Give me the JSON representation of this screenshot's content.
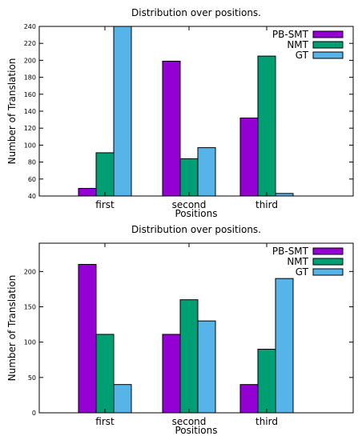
{
  "chart_data": [
    {
      "type": "bar",
      "title": "Distribution over positions.",
      "xlabel": "Positions",
      "ylabel": "Number of Translation",
      "categories": [
        "first",
        "second",
        "third"
      ],
      "ylim": [
        40,
        240
      ],
      "yticks": [
        40,
        60,
        80,
        100,
        120,
        140,
        160,
        180,
        200,
        220,
        240
      ],
      "grid": false,
      "legend_position": "top-right",
      "series": [
        {
          "name": "PB-SMT",
          "color": "#9400D3",
          "values": [
            49,
            199,
            132
          ]
        },
        {
          "name": "NMT",
          "color": "#009E73",
          "values": [
            91,
            84,
            205
          ]
        },
        {
          "name": "GT",
          "color": "#56B4E9",
          "values": [
            240,
            97,
            43
          ]
        }
      ]
    },
    {
      "type": "bar",
      "title": "Distribution over positions.",
      "xlabel": "Positions",
      "ylabel": "Number of Translation",
      "categories": [
        "first",
        "second",
        "third"
      ],
      "ylim": [
        0,
        240
      ],
      "yticks": [
        0,
        50,
        100,
        150,
        200
      ],
      "grid": false,
      "legend_position": "top-right",
      "series": [
        {
          "name": "PB-SMT",
          "color": "#9400D3",
          "values": [
            210,
            111,
            40
          ]
        },
        {
          "name": "NMT",
          "color": "#009E73",
          "values": [
            111,
            160,
            90
          ]
        },
        {
          "name": "GT",
          "color": "#56B4E9",
          "values": [
            40,
            130,
            190
          ]
        }
      ]
    }
  ]
}
